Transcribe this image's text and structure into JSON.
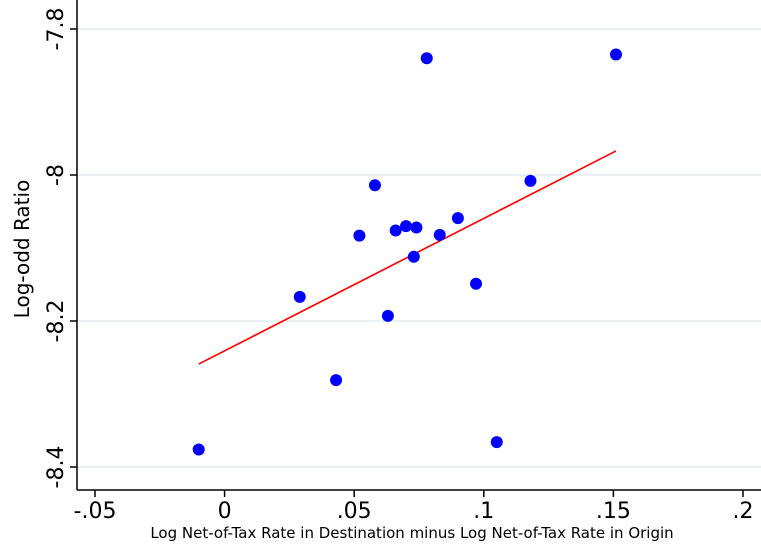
{
  "chart_data": {
    "type": "scatter",
    "title": "",
    "xlabel": "Log Net-of-Tax Rate in Destination minus Log Net-of-Tax Rate in Origin",
    "ylabel": "Log-odd Ratio",
    "xlim": [
      -0.05,
      0.2
    ],
    "ylim": [
      -8.4,
      -7.8
    ],
    "x_ticks": [
      -0.05,
      0,
      0.05,
      0.1,
      0.15,
      0.2
    ],
    "x_tick_labels": [
      "-.05",
      "0",
      ".05",
      ".1",
      ".15",
      ".2"
    ],
    "y_ticks": [
      -8.4,
      -8.2,
      -8.0,
      -7.8
    ],
    "y_tick_labels": [
      "-8.4",
      "-8.2",
      "-8",
      "-7.8"
    ],
    "grid": "horizontal",
    "legend": "none",
    "series": [
      {
        "type": "scatter",
        "color": "#0000ff",
        "points": [
          {
            "x": -0.01,
            "y": -8.376
          },
          {
            "x": 0.029,
            "y": -8.167
          },
          {
            "x": 0.043,
            "y": -8.281
          },
          {
            "x": 0.052,
            "y": -8.083
          },
          {
            "x": 0.058,
            "y": -8.014
          },
          {
            "x": 0.063,
            "y": -8.193
          },
          {
            "x": 0.066,
            "y": -8.076
          },
          {
            "x": 0.07,
            "y": -8.07
          },
          {
            "x": 0.073,
            "y": -8.112
          },
          {
            "x": 0.074,
            "y": -8.072
          },
          {
            "x": 0.078,
            "y": -7.84
          },
          {
            "x": 0.083,
            "y": -8.082
          },
          {
            "x": 0.09,
            "y": -8.059
          },
          {
            "x": 0.097,
            "y": -8.149
          },
          {
            "x": 0.105,
            "y": -8.366
          },
          {
            "x": 0.118,
            "y": -8.008
          },
          {
            "x": 0.151,
            "y": -7.835
          }
        ]
      },
      {
        "type": "line",
        "color": "#ff0000",
        "points": [
          {
            "x": -0.01,
            "y": -8.259
          },
          {
            "x": 0.151,
            "y": -7.967
          }
        ]
      }
    ]
  }
}
